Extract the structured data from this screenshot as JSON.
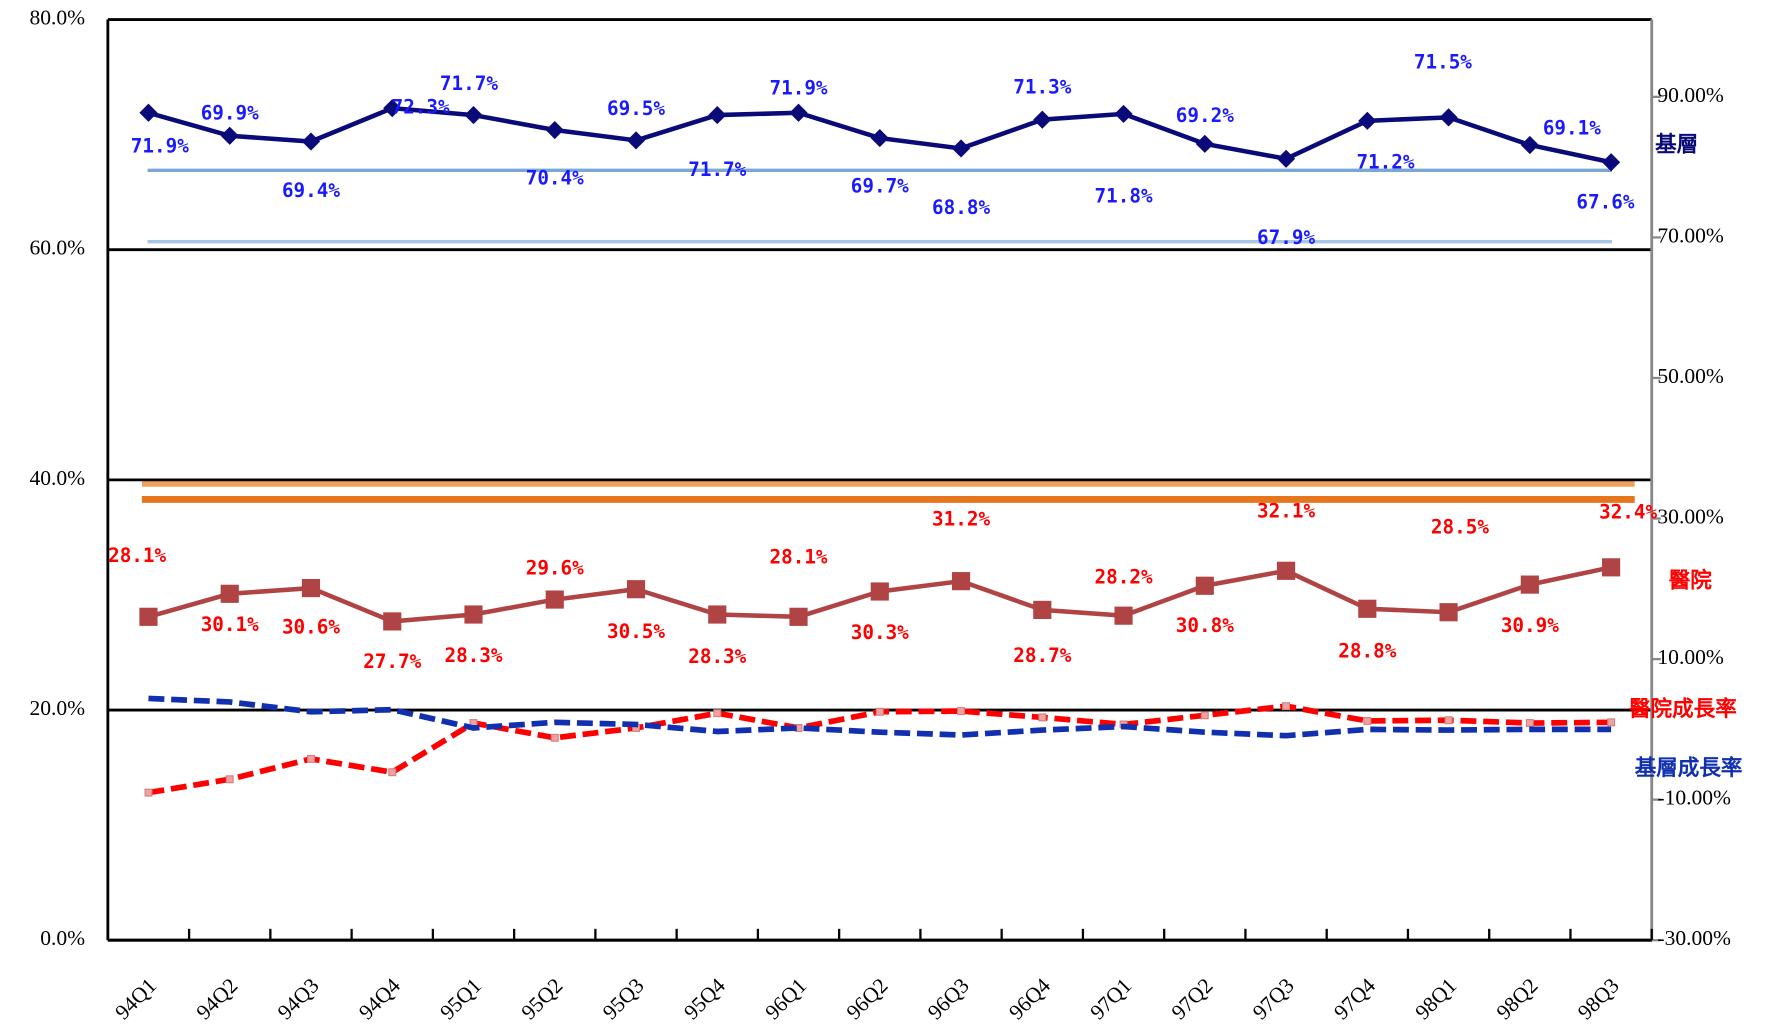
{
  "chart_data": {
    "type": "line",
    "categories": [
      "94Q1",
      "94Q2",
      "94Q3",
      "94Q4",
      "95Q1",
      "95Q2",
      "95Q3",
      "95Q4",
      "96Q1",
      "96Q2",
      "96Q3",
      "96Q4",
      "97Q1",
      "97Q2",
      "97Q3",
      "97Q4",
      "98Q1",
      "98Q2",
      "98Q3"
    ],
    "ylim": [
      0,
      80
    ],
    "yticks": [
      {
        "value": 0,
        "label": "0.0%"
      },
      {
        "value": 20,
        "label": "20.0%"
      },
      {
        "value": 40,
        "label": "40.0%"
      },
      {
        "value": 60,
        "label": "60.0%"
      },
      {
        "value": 80,
        "label": "80.0%"
      }
    ],
    "y2lim": [
      -30,
      101
    ],
    "y2ticks": [
      {
        "value": -30,
        "label": "-30.00%"
      },
      {
        "value": -10,
        "label": "-10.00%"
      },
      {
        "value": 10,
        "label": "10.00%"
      },
      {
        "value": 30,
        "label": "30.00%"
      },
      {
        "value": 50,
        "label": "50.00%"
      },
      {
        "value": 70,
        "label": "70.00%"
      },
      {
        "value": 90,
        "label": "90.00%"
      }
    ],
    "grid": true,
    "reference_lines": [
      {
        "value": 66.9,
        "color": "#7aa6d8"
      },
      {
        "value": 60.7,
        "color": "#a9c4e4"
      },
      {
        "value": 39.7,
        "color": "#f0a05a"
      },
      {
        "value": 38.3,
        "color": "#e6761e"
      }
    ],
    "series": [
      {
        "name": "基層",
        "color": "#0a0a78",
        "label_color": "#1a1aff",
        "marker": "diamond",
        "dashed": false,
        "values": [
          71.9,
          69.9,
          69.4,
          72.3,
          71.7,
          70.4,
          69.5,
          71.7,
          71.9,
          69.7,
          68.8,
          71.3,
          71.8,
          69.2,
          67.9,
          71.2,
          71.5,
          69.1,
          67.6
        ],
        "value_labels": [
          "71.9%",
          "69.9%",
          "69.4%",
          "72.3%",
          "71.7%",
          "70.4%",
          "69.5%",
          "71.7%",
          "71.9%",
          "69.7%",
          "68.8%",
          "71.3%",
          "71.8%",
          "69.2%",
          "67.9%",
          "71.2%",
          "71.5%",
          "69.1%",
          "67.6%"
        ]
      },
      {
        "name": "醫院",
        "color": "#b04444",
        "label_color": "#ff0000",
        "marker": "square",
        "dashed": false,
        "values": [
          28.1,
          30.1,
          30.6,
          27.7,
          28.3,
          29.6,
          30.5,
          28.3,
          28.1,
          30.3,
          31.2,
          28.7,
          28.2,
          30.8,
          32.1,
          28.8,
          28.5,
          30.9,
          32.4
        ],
        "value_labels": [
          "28.1%",
          "30.1%",
          "30.6%",
          "27.7%",
          "28.3%",
          "29.6%",
          "30.5%",
          "28.3%",
          "28.1%",
          "30.3%",
          "31.2%",
          "28.7%",
          "28.2%",
          "30.8%",
          "32.1%",
          "28.8%",
          "28.5%",
          "30.9%",
          "32.4%"
        ]
      },
      {
        "name": "醫院成長率",
        "color": "#ff0000",
        "marker": "smallsquare",
        "dashed": true,
        "axis": "y2",
        "values": [
          -9.0,
          -7.1,
          -4.2,
          -6.1,
          0.9,
          -1.2,
          0.2,
          2.3,
          0.2,
          2.5,
          2.6,
          1.7,
          0.7,
          2.0,
          3.3,
          1.2,
          1.3,
          0.9,
          1.0
        ]
      },
      {
        "name": "基層成長率",
        "color": "#1030b0",
        "marker": "none",
        "dashed": true,
        "axis": "y2",
        "values": [
          4.4,
          3.9,
          2.5,
          2.8,
          0.2,
          1.0,
          0.7,
          -0.3,
          0.2,
          -0.4,
          -0.8,
          -0.1,
          0.4,
          -0.4,
          -0.9,
          0.0,
          -0.1,
          0.0,
          0.0
        ]
      }
    ]
  }
}
